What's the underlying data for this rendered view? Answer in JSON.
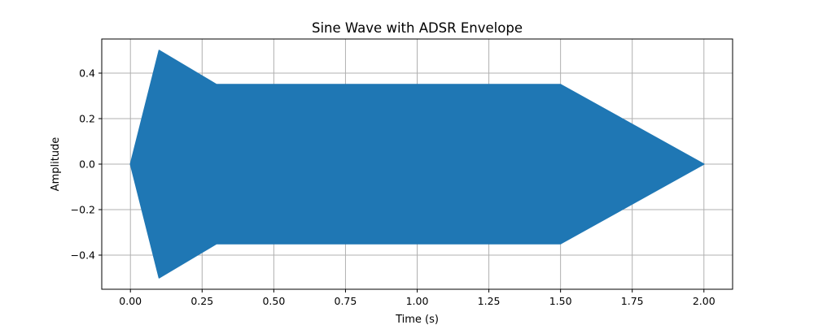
{
  "chart_data": {
    "type": "line",
    "title": "Sine Wave with ADSR Envelope",
    "xlabel": "Time (s)",
    "ylabel": "Amplitude",
    "xlim": [
      -0.1,
      2.1
    ],
    "ylim": [
      -0.55,
      0.55
    ],
    "grid": true,
    "x_ticks": [
      0.0,
      0.25,
      0.5,
      0.75,
      1.0,
      1.25,
      1.5,
      1.75,
      2.0
    ],
    "x_tick_labels": [
      "0.00",
      "0.25",
      "0.50",
      "0.75",
      "1.00",
      "1.25",
      "1.50",
      "1.75",
      "2.00"
    ],
    "y_ticks": [
      -0.4,
      -0.2,
      0.0,
      0.2,
      0.4
    ],
    "y_tick_labels": [
      "−0.4",
      "−0.2",
      "0.0",
      "0.2",
      "0.4"
    ],
    "series": [
      {
        "color": "#1f77b4",
        "envelope": {
          "x": [
            0.0,
            0.1,
            0.3,
            1.5,
            2.0
          ],
          "y": [
            0.0,
            0.5,
            0.35,
            0.35,
            0.0
          ]
        }
      }
    ]
  }
}
